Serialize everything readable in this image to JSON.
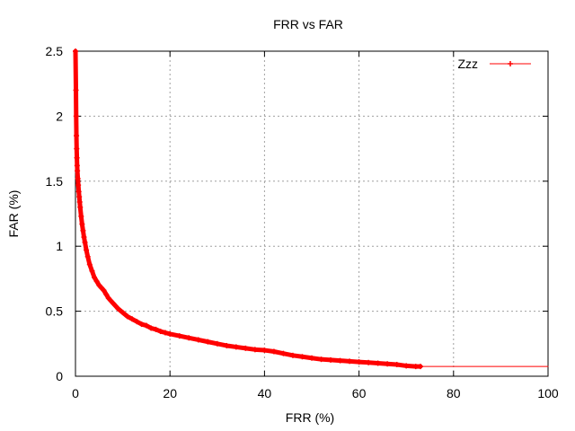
{
  "chart_data": {
    "type": "line",
    "title": "FRR vs FAR",
    "xlabel": "FRR (%)",
    "ylabel": "FAR (%)",
    "xlim": [
      0,
      100
    ],
    "ylim": [
      0,
      2.5
    ],
    "xticks": [
      0,
      20,
      40,
      60,
      80,
      100
    ],
    "yticks": [
      0,
      0.5,
      1,
      1.5,
      2,
      2.5
    ],
    "xtick_labels": [
      "0",
      "20",
      "40",
      "60",
      "80",
      "100"
    ],
    "ytick_labels": [
      "0",
      "0.5",
      "1",
      "1.5",
      "2",
      "2.5"
    ],
    "grid": true,
    "legend_position": "top-right",
    "series": [
      {
        "name": "Zzz",
        "color": "#ff0000",
        "marker": "plus",
        "x": [
          0,
          0.1,
          0.15,
          0.2,
          0.25,
          0.3,
          0.35,
          0.4,
          0.5,
          0.6,
          0.7,
          0.8,
          0.9,
          1.0,
          1.2,
          1.4,
          1.6,
          1.8,
          2.0,
          2.3,
          2.6,
          3.0,
          3.5,
          4.0,
          4.5,
          5.0,
          5.5,
          6.0,
          6.5,
          7.0,
          8.0,
          9.0,
          10.0,
          11.0,
          12.0,
          13.0,
          14.0,
          15.0,
          16.0,
          17.0,
          18.0,
          19.0,
          20.0,
          22.0,
          24.0,
          26.0,
          28.0,
          30.0,
          32.0,
          34.0,
          36.0,
          38.0,
          40.0,
          42.0,
          44.0,
          46.0,
          48.0,
          50.0,
          52.0,
          54.0,
          56.0,
          58.0,
          60.0,
          62.0,
          64.0,
          66.0,
          68.0,
          70.0,
          72.0,
          73.0
        ],
        "y": [
          2.5,
          2.2,
          2.0,
          1.85,
          1.75,
          1.68,
          1.62,
          1.58,
          1.52,
          1.47,
          1.42,
          1.38,
          1.34,
          1.3,
          1.23,
          1.17,
          1.12,
          1.07,
          1.03,
          0.97,
          0.92,
          0.86,
          0.81,
          0.76,
          0.73,
          0.7,
          0.68,
          0.66,
          0.63,
          0.6,
          0.56,
          0.52,
          0.49,
          0.46,
          0.44,
          0.42,
          0.4,
          0.39,
          0.37,
          0.36,
          0.345,
          0.335,
          0.325,
          0.31,
          0.295,
          0.28,
          0.265,
          0.25,
          0.235,
          0.225,
          0.215,
          0.205,
          0.2,
          0.19,
          0.175,
          0.16,
          0.15,
          0.14,
          0.13,
          0.125,
          0.12,
          0.115,
          0.11,
          0.105,
          0.1,
          0.095,
          0.09,
          0.08,
          0.075,
          0.075
        ]
      },
      {
        "name": "",
        "color": "#ff0000",
        "marker": "none",
        "x": [
          73.0,
          100.0
        ],
        "y": [
          0.075,
          0.075
        ]
      }
    ]
  }
}
